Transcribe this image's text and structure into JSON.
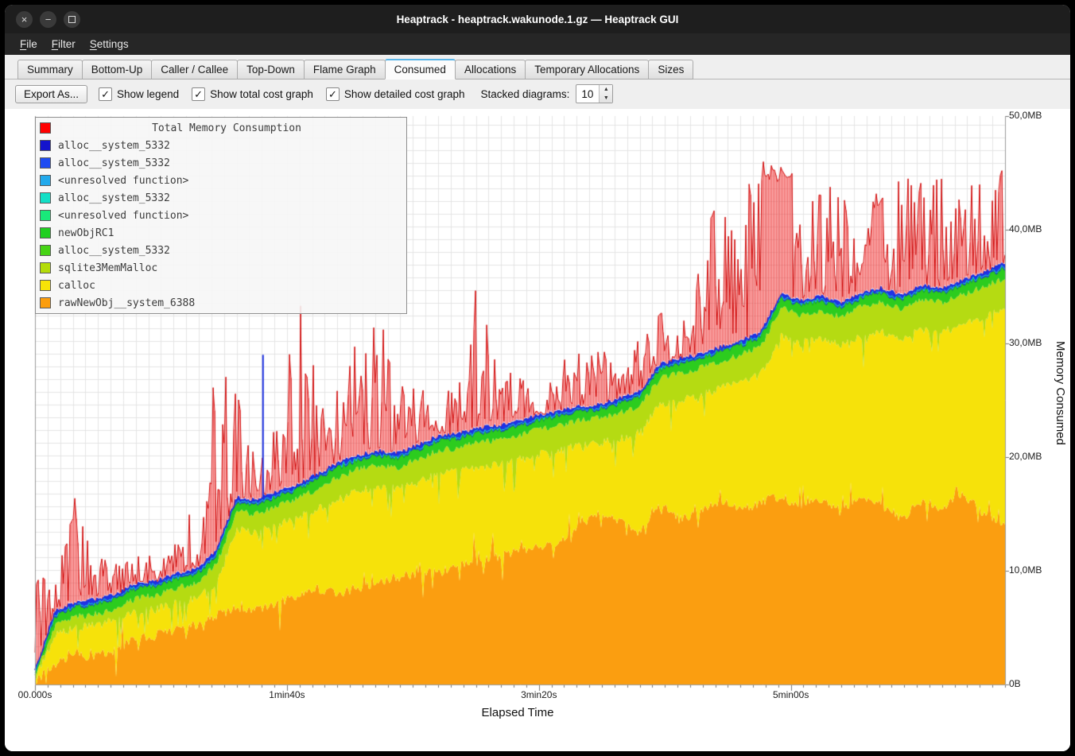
{
  "window": {
    "title": "Heaptrack - heaptrack.wakunode.1.gz — Heaptrack GUI"
  },
  "menu": {
    "items": [
      "File",
      "Filter",
      "Settings"
    ]
  },
  "tabs": {
    "items": [
      "Summary",
      "Bottom-Up",
      "Caller / Callee",
      "Top-Down",
      "Flame Graph",
      "Consumed",
      "Allocations",
      "Temporary Allocations",
      "Sizes"
    ],
    "active": "Consumed"
  },
  "toolbar": {
    "export_label": "Export As...",
    "checkboxes": [
      {
        "label": "Show legend",
        "checked": true
      },
      {
        "label": "Show total cost graph",
        "checked": true
      },
      {
        "label": "Show detailed cost graph",
        "checked": true
      }
    ],
    "stacked_label": "Stacked diagrams:",
    "stacked_value": "10"
  },
  "legend": {
    "title": {
      "label": "Total Memory Consumption",
      "color": "#ff0000"
    },
    "items": [
      {
        "label": "alloc__system_5332",
        "color": "#1414cc"
      },
      {
        "label": "alloc__system_5332",
        "color": "#1e4bf2"
      },
      {
        "label": "<unresolved function>",
        "color": "#21a9ec"
      },
      {
        "label": "alloc__system_5332",
        "color": "#12dfc6"
      },
      {
        "label": "<unresolved function>",
        "color": "#19e87a"
      },
      {
        "label": "newObjRC1",
        "color": "#1fcf1f"
      },
      {
        "label": "alloc__system_5332",
        "color": "#46d414"
      },
      {
        "label": "sqlite3MemMalloc",
        "color": "#b4dc0a"
      },
      {
        "label": "calloc",
        "color": "#f7e308"
      },
      {
        "label": "rawNewObj__system_6388",
        "color": "#fb9d0c"
      }
    ]
  },
  "chart_data": {
    "type": "area",
    "title": "Total Memory Consumption",
    "xlabel": "Elapsed Time",
    "ylabel": "Memory Consumed",
    "unit": "MB",
    "xlim": [
      0,
      385
    ],
    "ylim": [
      0,
      50
    ],
    "x_ticks": [
      {
        "t": 0,
        "label": "00.000s"
      },
      {
        "t": 100,
        "label": "1min40s"
      },
      {
        "t": 200,
        "label": "3min20s"
      },
      {
        "t": 300,
        "label": "5min00s"
      }
    ],
    "y_ticks": [
      {
        "v": 0,
        "label": "0B"
      },
      {
        "v": 10,
        "label": "10,0MB"
      },
      {
        "v": 20,
        "label": "20,0MB"
      },
      {
        "v": 30,
        "label": "30,0MB"
      },
      {
        "v": 40,
        "label": "40,0MB"
      },
      {
        "v": 50,
        "label": "50,0MB"
      }
    ],
    "t": [
      0,
      8,
      16,
      24,
      32,
      40,
      48,
      56,
      64,
      72,
      80,
      88,
      96,
      104,
      112,
      120,
      128,
      136,
      144,
      152,
      160,
      168,
      176,
      184,
      192,
      200,
      208,
      216,
      224,
      232,
      240,
      248,
      256,
      264,
      272,
      280,
      288,
      296,
      304,
      312,
      320,
      328,
      336,
      344,
      352,
      360,
      368,
      376,
      384
    ],
    "series": [
      {
        "name": "rawNewObj__system_6388",
        "color": "#fb9e10",
        "cum": [
          0.2,
          2,
          2.5,
          2.6,
          3,
          4,
          4.3,
          4.8,
          5.3,
          6,
          6.8,
          6.5,
          7.2,
          7.8,
          8.4,
          8,
          8.5,
          9,
          9.4,
          9.8,
          10,
          10.4,
          10.8,
          11.2,
          11.8,
          12,
          12.4,
          14.2,
          14.8,
          14.4,
          13.2,
          15.8,
          14.6,
          15.2,
          16.2,
          15.4,
          16,
          16.6,
          15.6,
          16.4,
          15.2,
          16.6,
          15.8,
          14.6,
          16.2,
          15.4,
          16.8,
          15.2,
          14.2
        ]
      },
      {
        "name": "calloc",
        "color": "#f6e20a",
        "cum": [
          0.5,
          4.3,
          5,
          5.2,
          5.6,
          6.4,
          6.6,
          7.2,
          7.6,
          9,
          13.6,
          13.4,
          14,
          14.6,
          15.4,
          16.4,
          17,
          17.4,
          17.2,
          17.8,
          18.6,
          18.8,
          19.2,
          19.4,
          19.8,
          20.2,
          20.6,
          21,
          21.2,
          21.6,
          22.2,
          24.6,
          25,
          25.4,
          26,
          26.6,
          27.2,
          30.6,
          30,
          30.4,
          29.8,
          30.6,
          31,
          30.4,
          31.2,
          31,
          31.6,
          32.2,
          33
        ]
      },
      {
        "name": "sqlite3MemMalloc",
        "color": "#b5db12",
        "cum": [
          0.8,
          5.2,
          6,
          6.2,
          6.7,
          7.6,
          7.8,
          8.5,
          8.9,
          10.5,
          15.2,
          15,
          15.7,
          16.3,
          17.2,
          18.2,
          18.9,
          19.3,
          19.1,
          19.8,
          20.6,
          20.8,
          21.3,
          21.5,
          21.9,
          22.4,
          22.8,
          23.2,
          23.4,
          23.9,
          24.5,
          26.9,
          27.4,
          27.8,
          28.4,
          29,
          29.7,
          33.1,
          32.5,
          32.9,
          32.3,
          33.2,
          33.6,
          33,
          33.8,
          33.6,
          34.3,
          34.9,
          35.7
        ]
      },
      {
        "name": "newObjRC1",
        "color": "#2ccc1e",
        "cum": [
          1.0,
          6.0,
          6.8,
          7.0,
          7.5,
          8.4,
          8.6,
          9.3,
          9.7,
          11.3,
          16.0,
          15.8,
          16.5,
          17.1,
          18.0,
          19.0,
          19.7,
          20.1,
          19.9,
          20.6,
          21.4,
          21.6,
          22.1,
          22.3,
          22.7,
          23.2,
          23.6,
          24.0,
          24.2,
          24.7,
          25.3,
          27.7,
          28.2,
          28.6,
          29.2,
          29.8,
          30.5,
          33.9,
          33.3,
          33.7,
          33.1,
          34.0,
          34.4,
          33.8,
          34.6,
          34.4,
          35.1,
          35.7,
          36.5
        ]
      },
      {
        "name": "alloc__system_5332",
        "color": "#2134e6",
        "cum": [
          1.2,
          6.4,
          7.2,
          7.4,
          7.9,
          8.8,
          9.0,
          9.7,
          10.1,
          11.7,
          16.4,
          16.2,
          16.9,
          17.5,
          18.4,
          19.4,
          20.1,
          20.5,
          20.3,
          21.0,
          21.8,
          22.0,
          22.5,
          22.7,
          23.1,
          23.6,
          24.0,
          24.4,
          24.6,
          25.1,
          25.7,
          28.1,
          28.6,
          29.0,
          29.6,
          30.2,
          30.9,
          34.3,
          33.7,
          34.1,
          33.5,
          34.4,
          34.8,
          34.2,
          35.0,
          34.8,
          35.5,
          36.1,
          36.9
        ]
      }
    ],
    "total": {
      "name": "Total Memory Consumption",
      "color": "#ff0000",
      "peak_env": [
        10,
        9,
        17,
        11,
        13,
        13,
        11,
        13,
        16,
        30,
        29,
        20,
        24,
        33,
        37,
        28,
        31,
        34,
        26,
        29,
        25,
        28,
        36,
        27,
        28,
        25,
        29,
        30,
        31,
        27,
        32,
        34,
        31,
        38,
        44,
        45,
        46,
        47,
        42,
        44,
        45,
        40,
        45,
        46,
        44,
        45,
        46,
        44,
        46
      ],
      "plateaus": [
        {
          "t0": 288,
          "t1": 301,
          "v": 46.3
        },
        {
          "t0": 332,
          "t1": 337,
          "v": 44
        }
      ]
    },
    "blue_spikes": [
      {
        "t": 90.5,
        "v": 29
      }
    ]
  }
}
